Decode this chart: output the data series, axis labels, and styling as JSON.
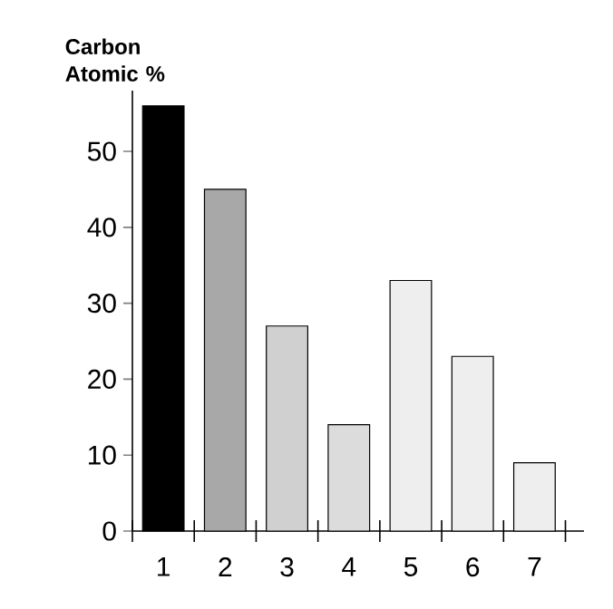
{
  "chart_data": {
    "type": "bar",
    "ylabel": "Carbon Atomic %",
    "categories": [
      "1",
      "2",
      "3",
      "4",
      "5",
      "6",
      "7"
    ],
    "values": [
      56,
      45,
      27,
      14,
      33,
      23,
      9
    ],
    "colors": [
      "#000000",
      "#a8a8a8",
      "#d0d0d0",
      "#dcdcdc",
      "#eeeeee",
      "#eeeeee",
      "#eeeeee"
    ],
    "ylim": [
      0,
      58
    ],
    "yticks": [
      0,
      10,
      20,
      30,
      40,
      50
    ]
  }
}
